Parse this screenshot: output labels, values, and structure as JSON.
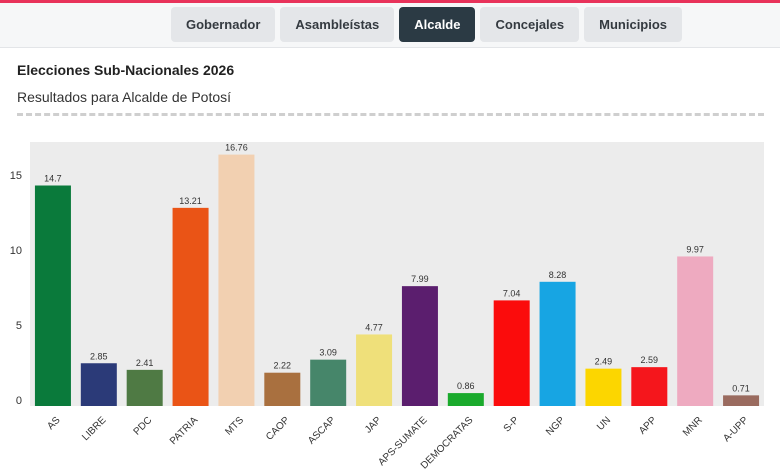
{
  "nav": {
    "tabs": [
      {
        "label": "Gobernador",
        "active": false
      },
      {
        "label": "Asambleístas",
        "active": false
      },
      {
        "label": "Alcalde",
        "active": true
      },
      {
        "label": "Concejales",
        "active": false
      },
      {
        "label": "Municipios",
        "active": false
      }
    ]
  },
  "header": {
    "title": "Elecciones Sub-Nacionales 2026",
    "subtitle": "Resultados para Alcalde de Potosí"
  },
  "colors": {
    "accent_bar": "#e8325a",
    "active_tab": "#2b3a44",
    "plot_background": "#ececec"
  },
  "chart_data": {
    "type": "bar",
    "title": "",
    "xlabel": "",
    "ylabel": "",
    "ylim": [
      0,
      17.6
    ],
    "yticks": [
      0,
      5,
      10,
      15
    ],
    "grid": false,
    "categories": [
      "AS",
      "LIBRE",
      "PDC",
      "PATRIA",
      "MTS",
      "CAOP",
      "ASCAP",
      "JAP",
      "APS-SUMATE",
      "DEMOCRATAS",
      "S-P",
      "NGP",
      "UN",
      "APP",
      "MNR",
      "A-UPP"
    ],
    "values": [
      14.7,
      2.85,
      2.41,
      13.21,
      16.76,
      2.22,
      3.09,
      4.77,
      7.99,
      0.86,
      7.04,
      8.28,
      2.49,
      2.59,
      9.97,
      0.71
    ],
    "value_labels": [
      "14.7",
      "2.85",
      "2.41",
      "13.21",
      "16.76",
      "2.22",
      "3.09",
      "4.77",
      "7.99",
      "0.86",
      "7.04",
      "8.28",
      "2.49",
      "2.59",
      "9.97",
      "0.71"
    ],
    "bar_colors": [
      "#0a7a3b",
      "#2b3a78",
      "#4f7a44",
      "#ea5416",
      "#f2d0b1",
      "#a9703f",
      "#46866a",
      "#efe07a",
      "#5b1e6e",
      "#1aaa2c",
      "#fb0c0c",
      "#17a5e3",
      "#fcd600",
      "#f5161c",
      "#eeaac0",
      "#9a6b5f"
    ]
  }
}
